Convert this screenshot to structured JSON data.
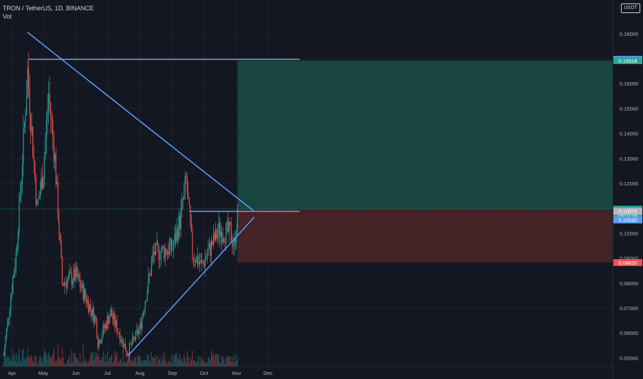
{
  "header": {
    "symbol_line": "TRON / TetherUS, 1D, BINANCE",
    "volume_label": "Vol",
    "currency_button": "USDT"
  },
  "colors": {
    "background": "#131722",
    "up": "#26a69a",
    "down": "#ef5350",
    "trendline": "#5b9cf6",
    "target_zone": "#1b4d45",
    "stop_zone": "#4a2326",
    "grid": "#1e222d",
    "axis_text": "#b2b5be"
  },
  "chart_data": {
    "type": "candlestick",
    "x_ticks": [
      "Apr",
      "May",
      "Jun",
      "Jul",
      "Aug",
      "Sep",
      "Oct",
      "Nov",
      "Dec"
    ],
    "y_ticks": [
      "0.05000",
      "0.06000",
      "0.07000",
      "0.08000",
      "0.09000",
      "0.10000",
      "0.11000",
      "0.12000",
      "0.13000",
      "0.14000",
      "0.15000",
      "0.16000",
      "0.17000",
      "0.18000"
    ],
    "ylim": [
      0.0465,
      0.1935
    ],
    "date_range": [
      "2021-03-24",
      "2021-11-02"
    ],
    "grid": true,
    "price_labels": [
      {
        "text": "0.16969",
        "value": 0.16969,
        "color": "#5b9cf6"
      },
      {
        "text": "0.16918",
        "value": 0.16918,
        "color": "#26a69a"
      },
      {
        "text": "0.10963",
        "value": 0.10963,
        "color": "#26a69a"
      },
      {
        "text": "09:01:56",
        "value": 0.107,
        "color": "#26a69a"
      },
      {
        "text": "0.10875",
        "value": 0.10875,
        "color": "#b2b5be"
      },
      {
        "text": "0.10530",
        "value": 0.1053,
        "color": "#5b9cf6"
      },
      {
        "text": "0.08820",
        "value": 0.0882,
        "color": "#ef5350"
      }
    ],
    "annotations": {
      "trendlines": [
        {
          "name": "descending-resistance",
          "from": [
            "2021-04-16",
            0.1805
          ],
          "to": [
            "2021-11-17",
            0.109
          ]
        },
        {
          "name": "ascending-support",
          "from": [
            "2021-07-21",
            0.051
          ],
          "to": [
            "2021-11-18",
            0.1065
          ]
        },
        {
          "name": "horizontal-resistance",
          "from": [
            "2021-04-17",
            0.16969
          ],
          "to": [
            "2021-12-31",
            0.16969
          ]
        },
        {
          "name": "horizontal-breakout-level",
          "from": [
            "2021-09-17",
            0.10875
          ],
          "to": [
            "2021-12-31",
            0.10875
          ]
        }
      ],
      "position": {
        "entry": 0.10963,
        "target": 0.16918,
        "stop": 0.0882,
        "from": "2021-11-02",
        "to": "2021-12-31"
      }
    },
    "key_points": [
      {
        "date": "2021-03-24",
        "close": 0.051
      },
      {
        "date": "2021-04-05",
        "close": 0.092
      },
      {
        "date": "2021-04-10",
        "close": 0.123
      },
      {
        "date": "2021-04-16",
        "close": 0.165
      },
      {
        "date": "2021-04-25",
        "close": 0.11
      },
      {
        "date": "2021-05-01",
        "close": 0.125
      },
      {
        "date": "2021-05-06",
        "close": 0.156
      },
      {
        "date": "2021-05-12",
        "close": 0.13
      },
      {
        "date": "2021-05-19",
        "close": 0.08
      },
      {
        "date": "2021-06-01",
        "close": 0.083
      },
      {
        "date": "2021-06-20",
        "close": 0.065
      },
      {
        "date": "2021-06-22",
        "close": 0.056
      },
      {
        "date": "2021-07-04",
        "close": 0.068
      },
      {
        "date": "2021-07-20",
        "close": 0.052
      },
      {
        "date": "2021-08-01",
        "close": 0.062
      },
      {
        "date": "2021-08-14",
        "close": 0.092
      },
      {
        "date": "2021-09-01",
        "close": 0.094
      },
      {
        "date": "2021-09-08",
        "close": 0.105
      },
      {
        "date": "2021-09-14",
        "close": 0.121
      },
      {
        "date": "2021-09-20",
        "close": 0.092
      },
      {
        "date": "2021-09-29",
        "close": 0.087
      },
      {
        "date": "2021-10-15",
        "close": 0.101
      },
      {
        "date": "2021-10-26",
        "close": 0.1
      },
      {
        "date": "2021-10-30",
        "close": 0.095
      },
      {
        "date": "2021-11-02",
        "close": 0.1096
      }
    ],
    "volume_scale_max": 66
  }
}
